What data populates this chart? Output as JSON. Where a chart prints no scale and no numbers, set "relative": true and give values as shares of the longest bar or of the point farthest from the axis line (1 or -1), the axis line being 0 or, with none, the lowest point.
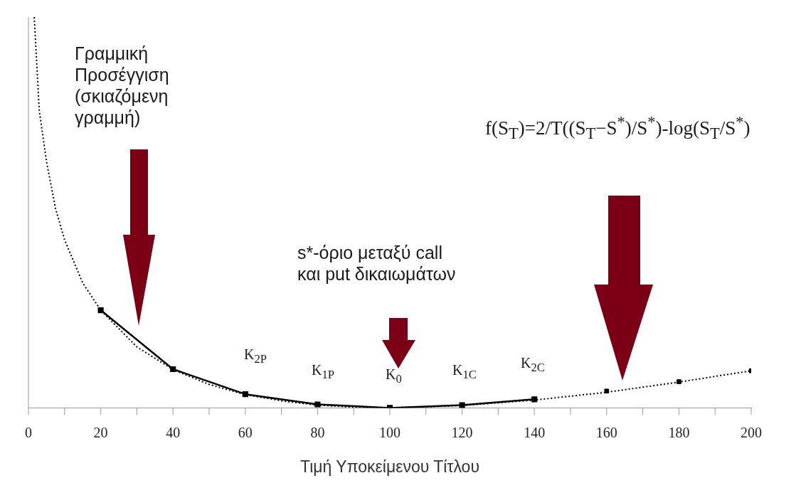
{
  "chart_data": {
    "type": "line",
    "relative": true,
    "xlabel": "Τιμή Υποκείμενου Τίτλου",
    "xlim": [
      0,
      200
    ],
    "xticks": [
      0,
      {
        "value": 10,
        "label": null
      },
      20,
      {
        "value": 30,
        "label": null
      },
      40,
      {
        "value": 50,
        "label": null
      },
      60,
      {
        "value": 70,
        "label": null
      },
      80,
      {
        "value": 90,
        "label": null
      },
      100,
      {
        "value": 110,
        "label": null
      },
      120,
      {
        "value": 130,
        "label": null
      },
      140,
      {
        "value": 150,
        "label": null
      },
      160,
      {
        "value": 170,
        "label": null
      },
      180,
      {
        "value": 190,
        "label": null
      },
      200
    ],
    "grid": false,
    "legend": false,
    "series": [
      {
        "color": "#000000",
        "line_style": "dotted",
        "marker": "none",
        "x": [
          1.6,
          3,
          5,
          7.5,
          10,
          15,
          20,
          30,
          40,
          50,
          60,
          70,
          80,
          90,
          100,
          120,
          140,
          160,
          180,
          200
        ],
        "values": [
          1,
          0.76,
          0.63,
          0.51,
          0.43,
          0.32,
          0.25,
          0.156,
          0.098,
          0.06,
          0.034,
          0.018,
          0.007,
          0.002,
          0,
          0.006,
          0.02,
          0.04,
          0.066,
          0.095
        ]
      },
      {
        "color": "#000000",
        "line_style": "solid",
        "marker": "square",
        "x": [
          20,
          40,
          60,
          80,
          100,
          120,
          140
        ],
        "values": [
          0.25,
          0.099,
          0.035,
          0.009,
          0,
          0.007,
          0.022
        ]
      },
      {
        "type": "scatter",
        "color": "#000000",
        "marker": "square",
        "x": [
          160,
          180,
          200
        ],
        "values": [
          0.043,
          0.067,
          0.095
        ]
      }
    ],
    "annotations": [
      "Γραμμική Προσέγγιση (σκιαζόμενη γραμμή)",
      "s*-όριο μεταξύ call και put δικαιωμάτων",
      "f(S$_{T}$)=2/T((S$_{T}$−S$^{*}$)/S$^{*}$)-log(S$_{T}$/S$^{*}$)",
      "K$_{2P}$",
      "K$_{1P}$",
      "K$_{0}$",
      "K$_{1C}$",
      "K$_{2C}$"
    ]
  }
}
